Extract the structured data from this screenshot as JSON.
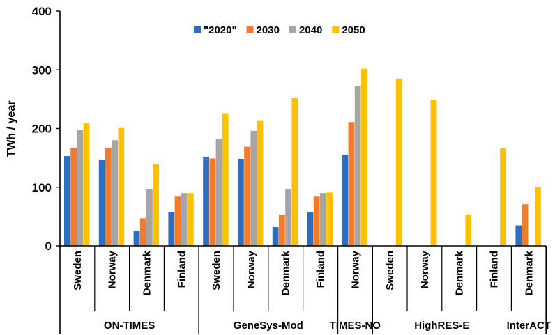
{
  "chart_data": {
    "type": "bar",
    "ylabel": "TWh / year",
    "ylim": [
      0,
      400
    ],
    "yticks": [
      0,
      100,
      200,
      300,
      400
    ],
    "legend_position": "top-center",
    "colors": [
      "#2e6ec0",
      "#f47a2c",
      "#a5a5a5",
      "#ffc000"
    ],
    "series_names": [
      "\"2020\"",
      "2030",
      "2040",
      "2050"
    ],
    "groups": [
      {
        "name": "ON-TIMES",
        "categories": [
          {
            "name": "Sweden",
            "values": [
              153,
              167,
              197,
              209
            ]
          },
          {
            "name": "Norway",
            "values": [
              146,
              167,
              180,
              201
            ]
          },
          {
            "name": "Denmark",
            "values": [
              26,
              47,
              97,
              139
            ]
          },
          {
            "name": "Finland",
            "values": [
              58,
              84,
              90,
              90
            ]
          }
        ]
      },
      {
        "name": "GeneSys-Mod",
        "categories": [
          {
            "name": "Sweden",
            "values": [
              152,
              149,
              182,
              226
            ]
          },
          {
            "name": "Norway",
            "values": [
              148,
              169,
              196,
              213
            ]
          },
          {
            "name": "Denmark",
            "values": [
              32,
              53,
              96,
              252
            ]
          },
          {
            "name": "Finland",
            "values": [
              58,
              84,
              90,
              91
            ]
          }
        ]
      },
      {
        "name": "TIMES-NO",
        "categories": [
          {
            "name": "Norway",
            "values": [
              155,
              211,
              272,
              302
            ]
          }
        ]
      },
      {
        "name": "HighRES-E",
        "categories": [
          {
            "name": "Sweden",
            "values": [
              null,
              null,
              null,
              285
            ]
          },
          {
            "name": "Norway",
            "values": [
              null,
              null,
              null,
              249
            ]
          },
          {
            "name": "Denmark",
            "values": [
              null,
              null,
              null,
              53
            ]
          },
          {
            "name": "Finland",
            "values": [
              null,
              null,
              null,
              166
            ]
          }
        ]
      },
      {
        "name": "InterACT",
        "categories": [
          {
            "name": "Denmark",
            "values": [
              35,
              71,
              null,
              100
            ]
          }
        ]
      }
    ]
  }
}
